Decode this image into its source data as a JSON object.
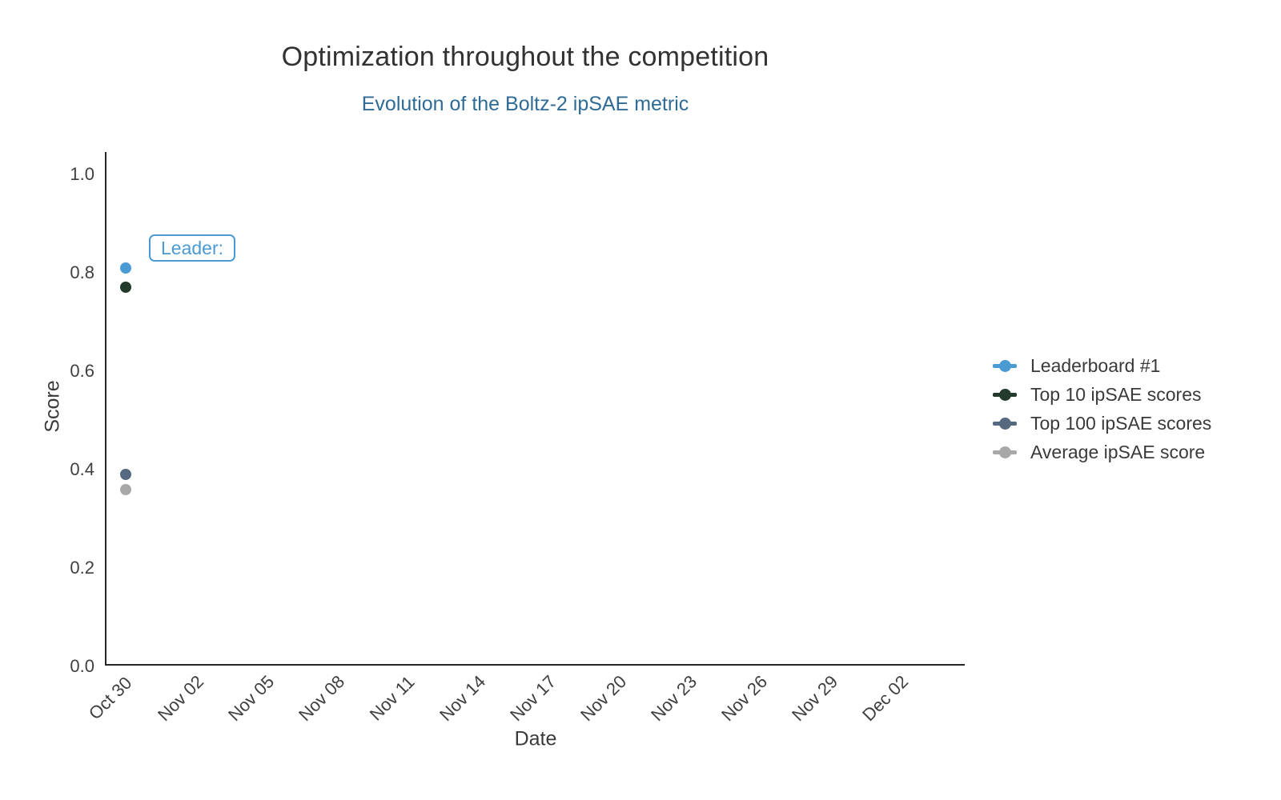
{
  "header": {
    "title": "Optimization throughout the competition",
    "subtitle": "Evolution of the Boltz-2 ipSAE metric"
  },
  "annotation": {
    "text": "Leader:"
  },
  "chart_data": {
    "type": "scatter",
    "title": "Optimization throughout the competition",
    "subtitle": "Evolution of the Boltz-2 ipSAE metric",
    "xlabel": "Date",
    "ylabel": "Score",
    "x": [
      "Oct 30"
    ],
    "series": [
      {
        "name": "Leaderboard #1",
        "color": "#4a9bd4",
        "values": [
          0.81
        ]
      },
      {
        "name": "Top 10 ipSAE scores",
        "color": "#233a2c",
        "values": [
          0.77
        ]
      },
      {
        "name": "Top 100 ipSAE scores",
        "color": "#56697f",
        "values": [
          0.39
        ]
      },
      {
        "name": "Average ipSAE score",
        "color": "#a8a8a8",
        "values": [
          0.36
        ]
      }
    ],
    "x_tick_labels": [
      "Oct 30",
      "Nov 02",
      "Nov 05",
      "Nov 08",
      "Nov 11",
      "Nov 14",
      "Nov 17",
      "Nov 20",
      "Nov 23",
      "Nov 26",
      "Nov 29",
      "Dec 02"
    ],
    "y_tick_labels": [
      "0.0",
      "0.2",
      "0.4",
      "0.6",
      "0.8",
      "1.0"
    ],
    "ylim": [
      0.0,
      1.04
    ],
    "grid": false,
    "legend_position": "right-outside",
    "annotation": "Leader:",
    "accent_color": "#4a9bd4",
    "subtitle_color": "#2e6b96",
    "axis_color": "#262626"
  }
}
